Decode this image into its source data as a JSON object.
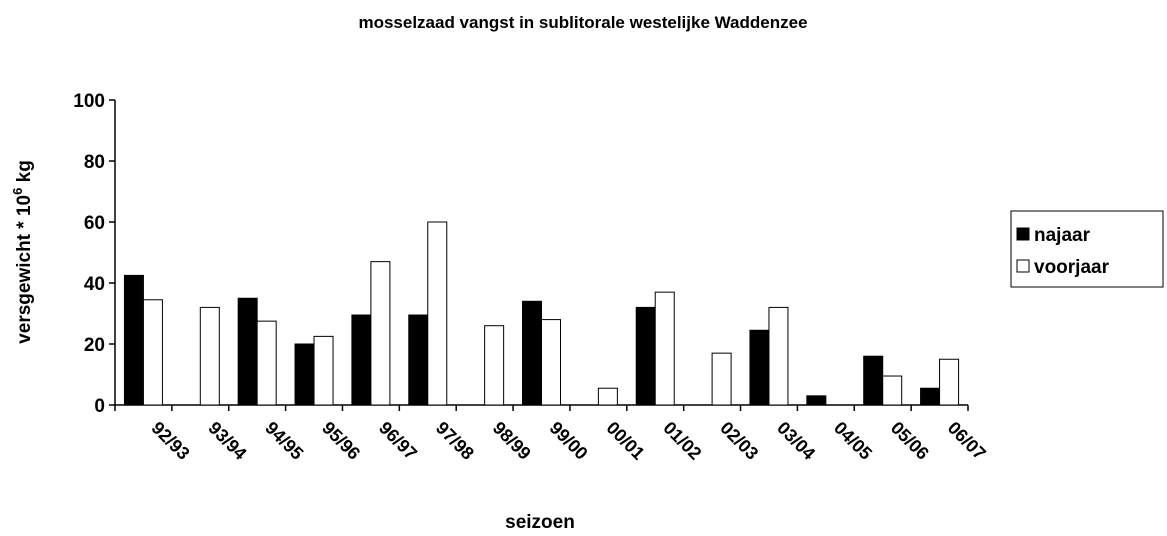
{
  "chart_data": {
    "type": "bar",
    "title": "mosselzaad vangst in sublitorale westelijke Waddenzee",
    "x_label": "seizoen",
    "y_label": "versgewicht * 10",
    "y_label_superscript": "6",
    "y_label_unit": "kg",
    "categories": [
      "92/93",
      "93/94",
      "94/95",
      "95/96",
      "96/97",
      "97/98",
      "98/99",
      "99/00",
      "00/01",
      "01/02",
      "02/03",
      "03/04",
      "04/05",
      "05/06",
      "06/07"
    ],
    "series": [
      {
        "name": "najaar",
        "color": "#000000",
        "values": [
          42.5,
          0,
          35,
          20,
          29.5,
          29.5,
          0,
          34,
          0,
          32,
          0,
          24.5,
          3,
          16,
          5.5
        ]
      },
      {
        "name": "voorjaar",
        "color": "#ffffff",
        "values": [
          34.5,
          32,
          27.5,
          22.5,
          47,
          60,
          26,
          28,
          5.5,
          37,
          17,
          32,
          0,
          9.5,
          15
        ]
      }
    ],
    "ylim": [
      0,
      100
    ],
    "yticks": [
      0,
      20,
      40,
      60,
      80,
      100
    ],
    "grid": false,
    "legend": "right"
  }
}
